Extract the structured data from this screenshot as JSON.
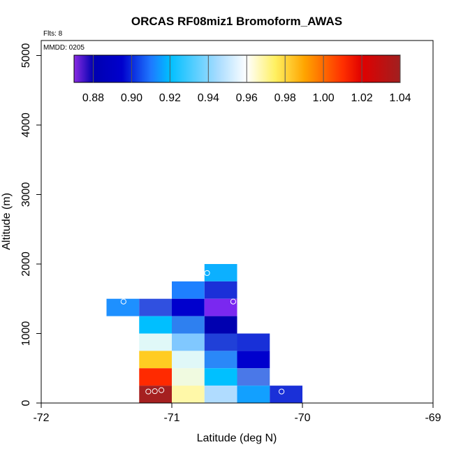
{
  "chart_data": {
    "type": "heatmap",
    "title": "ORCAS RF08miz1 Bromoform_AWAS",
    "flights_note": "Flts: 8",
    "date_note": "MMDD: 0205",
    "xlabel": "Latitude (deg N)",
    "ylabel": "Altitude (m)",
    "xlim": [
      -72,
      -69
    ],
    "ylim": [
      0,
      5200
    ],
    "x_ticks": [
      -72,
      -71,
      -70,
      -69
    ],
    "x_tick_labels": [
      "-72",
      "-71",
      "-70",
      "-69"
    ],
    "y_ticks": [
      0,
      1000,
      2000,
      3000,
      4000,
      5000
    ],
    "y_tick_labels": [
      "0",
      "1000",
      "2000",
      "3000",
      "4000",
      "5000"
    ],
    "colorbar": {
      "range": [
        0.87,
        1.04
      ],
      "ticks": [
        0.88,
        0.9,
        0.92,
        0.94,
        0.96,
        0.98,
        1.0,
        1.02,
        1.04
      ],
      "tick_labels": [
        "0.88",
        "0.90",
        "0.92",
        "0.94",
        "0.96",
        "0.98",
        "1.00",
        "1.02",
        "1.04"
      ],
      "stops": [
        {
          "v": 0.87,
          "c": "#8a2be2"
        },
        {
          "v": 0.88,
          "c": "#0000b0"
        },
        {
          "v": 0.895,
          "c": "#0000cd"
        },
        {
          "v": 0.91,
          "c": "#1e78ff"
        },
        {
          "v": 0.92,
          "c": "#00bfff"
        },
        {
          "v": 0.945,
          "c": "#a8dcff"
        },
        {
          "v": 0.96,
          "c": "#ffffff"
        },
        {
          "v": 0.975,
          "c": "#fff060"
        },
        {
          "v": 0.99,
          "c": "#ffa500"
        },
        {
          "v": 1.01,
          "c": "#ff3000"
        },
        {
          "v": 1.02,
          "c": "#e00000"
        },
        {
          "v": 1.04,
          "c": "#a02020"
        }
      ]
    },
    "cell_size": {
      "lat": 0.25,
      "alt": 250
    },
    "cells": [
      {
        "lat": -71.375,
        "alt": 1375,
        "color": "#1e90ff"
      },
      {
        "lat": -71.125,
        "alt": 1375,
        "color": "#3050e0"
      },
      {
        "lat": -71.125,
        "alt": 1125,
        "color": "#00bfff"
      },
      {
        "lat": -71.125,
        "alt": 875,
        "color": "#e0f8f8"
      },
      {
        "lat": -71.125,
        "alt": 625,
        "color": "#ffcc22"
      },
      {
        "lat": -71.125,
        "alt": 375,
        "color": "#ff2a00"
      },
      {
        "lat": -71.125,
        "alt": 125,
        "color": "#a52020"
      },
      {
        "lat": -70.875,
        "alt": 1625,
        "color": "#1e80ff"
      },
      {
        "lat": -70.875,
        "alt": 1375,
        "color": "#0000cd"
      },
      {
        "lat": -70.875,
        "alt": 1125,
        "color": "#2e80f0"
      },
      {
        "lat": -70.875,
        "alt": 875,
        "color": "#80c8ff"
      },
      {
        "lat": -70.875,
        "alt": 625,
        "color": "#e0f8f8"
      },
      {
        "lat": -70.875,
        "alt": 375,
        "color": "#f0fae0"
      },
      {
        "lat": -70.875,
        "alt": 125,
        "color": "#fff8a8"
      },
      {
        "lat": -70.625,
        "alt": 1875,
        "color": "#0cb0ff"
      },
      {
        "lat": -70.625,
        "alt": 1625,
        "color": "#1a30d8"
      },
      {
        "lat": -70.625,
        "alt": 1375,
        "color": "#7a28f0"
      },
      {
        "lat": -70.625,
        "alt": 1125,
        "color": "#0000b0"
      },
      {
        "lat": -70.625,
        "alt": 875,
        "color": "#2040d8"
      },
      {
        "lat": -70.625,
        "alt": 625,
        "color": "#2a88f8"
      },
      {
        "lat": -70.625,
        "alt": 375,
        "color": "#00c0ff"
      },
      {
        "lat": -70.625,
        "alt": 125,
        "color": "#b0dcff"
      },
      {
        "lat": -70.375,
        "alt": 875,
        "color": "#1830d8"
      },
      {
        "lat": -70.375,
        "alt": 625,
        "color": "#0000cd"
      },
      {
        "lat": -70.375,
        "alt": 375,
        "color": "#4a78e8"
      },
      {
        "lat": -70.375,
        "alt": 125,
        "color": "#12a0ff"
      },
      {
        "lat": -70.125,
        "alt": 125,
        "color": "#1a30d8"
      }
    ],
    "points": [
      {
        "lat": -71.37,
        "alt": 1460
      },
      {
        "lat": -70.73,
        "alt": 1870
      },
      {
        "lat": -70.53,
        "alt": 1460
      },
      {
        "lat": -71.18,
        "alt": 165
      },
      {
        "lat": -71.13,
        "alt": 170
      },
      {
        "lat": -71.08,
        "alt": 185
      },
      {
        "lat": -70.16,
        "alt": 165
      }
    ]
  }
}
